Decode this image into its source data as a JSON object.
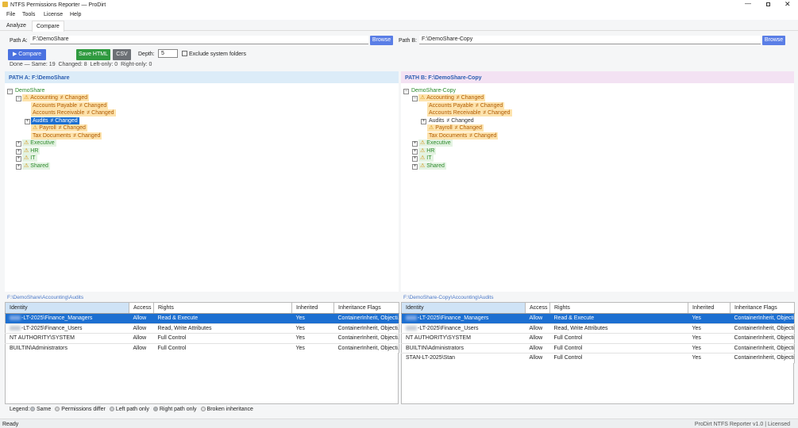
{
  "window": {
    "title": "NTFS Permissions Reporter — ProDirt"
  },
  "menu": [
    "File",
    "Tools",
    "License",
    "Help"
  ],
  "tabs": [
    {
      "label": "Analyze",
      "active": false
    },
    {
      "label": "Compare",
      "active": true
    }
  ],
  "paths": [
    {
      "label": "Path A:",
      "value": "F:\\DemoShare",
      "button": "Browse"
    },
    {
      "label": "Path B:",
      "value": "F:\\DemoShare-Copy",
      "button": "Browse"
    }
  ],
  "toolbar": {
    "compare": "▶ Compare",
    "save_html": "Save HTML",
    "csv": "CSV",
    "depth_label": "Depth:",
    "depth_value": "5",
    "exclude_label": "Exclude system folders",
    "exclude_checked": false
  },
  "summary": "Done — Same: 19  Changed: 8  Left-only: 0  Right-only: 0",
  "panels": [
    {
      "header": "PATH A: F:\\DemoShare",
      "header_color": "#dcecf8",
      "tree": [
        {
          "label": "DemoShare",
          "depth": 0,
          "expander": "minus",
          "warn": false,
          "style": "root"
        },
        {
          "label": "Accounting",
          "badge": "≠ Changed",
          "depth": 1,
          "expander": "minus",
          "warn": true,
          "style": "changed"
        },
        {
          "label": "Accounts Payable",
          "badge": "≠ Changed",
          "depth": 2,
          "warn": false,
          "style": "changed"
        },
        {
          "label": "Accounts Receivable",
          "badge": "≠ Changed",
          "depth": 2,
          "warn": false,
          "style": "changed"
        },
        {
          "label": "Audits",
          "badge": "≠ Changed",
          "depth": 2,
          "expander": "plus",
          "warn": false,
          "style": "selected"
        },
        {
          "label": "Payroll",
          "badge": "≠ Changed",
          "depth": 2,
          "warn": true,
          "style": "changed"
        },
        {
          "label": "Tax Documents",
          "badge": "≠ Changed",
          "depth": 2,
          "warn": false,
          "style": "changed"
        },
        {
          "label": "Executive",
          "depth": 1,
          "expander": "plus",
          "warn": true,
          "style": "same"
        },
        {
          "label": "HR",
          "depth": 1,
          "expander": "plus",
          "warn": true,
          "style": "same"
        },
        {
          "label": "IT",
          "depth": 1,
          "expander": "plus",
          "warn": true,
          "style": "same"
        },
        {
          "label": "Shared",
          "depth": 1,
          "expander": "plus",
          "warn": true,
          "style": "same"
        }
      ],
      "path": "F:\\DemoShare\\Accounting\\Audits",
      "table": {
        "columns": [
          "Identity",
          "Access",
          "Rights",
          "Inherited",
          "Inheritance Flags"
        ],
        "rows": [
          {
            "cells": [
              "-LT-2025\\Finance_Managers",
              "Allow",
              "Read & Execute",
              "Yes",
              "ContainerInherit, Objecti..."
            ],
            "redacted": true,
            "selected": true
          },
          {
            "cells": [
              "-LT-2025\\Finance_Users",
              "Allow",
              "Read, Write Attributes",
              "Yes",
              "ContainerInherit, Objecti..."
            ],
            "redacted": true,
            "selected": false
          },
          {
            "cells": [
              "NT AUTHORITY\\SYSTEM",
              "Allow",
              "Full Control",
              "Yes",
              "ContainerInherit, Objecti..."
            ],
            "redacted": false,
            "selected": false
          },
          {
            "cells": [
              "BUILTIN\\Administrators",
              "Allow",
              "Full Control",
              "Yes",
              "ContainerInherit, Objecti..."
            ],
            "redacted": false,
            "selected": false
          }
        ]
      }
    },
    {
      "header": "PATH B: F:\\DemoShare-Copy",
      "header_color": "#f3e2f3",
      "tree": [
        {
          "label": "DemoShare-Copy",
          "depth": 0,
          "expander": "minus",
          "warn": false,
          "style": "root"
        },
        {
          "label": "Accounting",
          "badge": "≠ Changed",
          "depth": 1,
          "expander": "minus",
          "warn": true,
          "style": "changed"
        },
        {
          "label": "Accounts Payable",
          "badge": "≠ Changed",
          "depth": 2,
          "warn": false,
          "style": "changed"
        },
        {
          "label": "Accounts Receivable",
          "badge": "≠ Changed",
          "depth": 2,
          "warn": false,
          "style": "changed"
        },
        {
          "label": "Audits",
          "badge": "≠ Changed",
          "depth": 2,
          "expander": "plus",
          "warn": false,
          "style": "plain"
        },
        {
          "label": "Payroll",
          "badge": "≠ Changed",
          "depth": 2,
          "warn": true,
          "style": "changed"
        },
        {
          "label": "Tax Documents",
          "badge": "≠ Changed",
          "depth": 2,
          "warn": false,
          "style": "changed"
        },
        {
          "label": "Executive",
          "depth": 1,
          "expander": "plus",
          "warn": true,
          "style": "same"
        },
        {
          "label": "HR",
          "depth": 1,
          "expander": "plus",
          "warn": true,
          "style": "same"
        },
        {
          "label": "IT",
          "depth": 1,
          "expander": "plus",
          "warn": true,
          "style": "same"
        },
        {
          "label": "Shared",
          "depth": 1,
          "expander": "plus",
          "warn": true,
          "style": "same"
        }
      ],
      "path": "F:\\DemoShare-Copy\\Accounting\\Audits",
      "table": {
        "columns": [
          "Identity",
          "Access",
          "Rights",
          "Inherited",
          "Inheritance Flags"
        ],
        "rows": [
          {
            "cells": [
              "-LT-2025\\Finance_Managers",
              "Allow",
              "Read & Execute",
              "Yes",
              "ContainerInherit, Objecti..."
            ],
            "redacted": true,
            "selected": true
          },
          {
            "cells": [
              "-LT-2025\\Finance_Users",
              "Allow",
              "Read, Write Attributes",
              "Yes",
              "ContainerInherit, Objecti..."
            ],
            "redacted": true,
            "selected": false
          },
          {
            "cells": [
              "NT AUTHORITY\\SYSTEM",
              "Allow",
              "Full Control",
              "Yes",
              "ContainerInherit, Objecti..."
            ],
            "redacted": false,
            "selected": false
          },
          {
            "cells": [
              "BUILTIN\\Administrators",
              "Allow",
              "Full Control",
              "Yes",
              "ContainerInherit, Objecti..."
            ],
            "redacted": false,
            "selected": false
          },
          {
            "cells": [
              "STAN-LT-2025\\Stan",
              "Allow",
              "Full Control",
              "Yes",
              "ContainerInherit, Objecti..."
            ],
            "redacted": false,
            "selected": false
          }
        ]
      }
    }
  ],
  "legend": {
    "title": "Legend:",
    "items": [
      {
        "label": "Same",
        "color": "#b8bfc6"
      },
      {
        "label": "Permissions differ",
        "color": "#d6d6d6"
      },
      {
        "label": "Left path only",
        "color": "#c9ccd0"
      },
      {
        "label": "Right path only",
        "color": "#b0b4b8"
      },
      {
        "label": "Broken inheritance",
        "color": "#e2e2e2"
      }
    ]
  },
  "statusbar": {
    "left": "Ready",
    "right": "ProDirt NTFS Reporter v1.0 | Licensed"
  }
}
